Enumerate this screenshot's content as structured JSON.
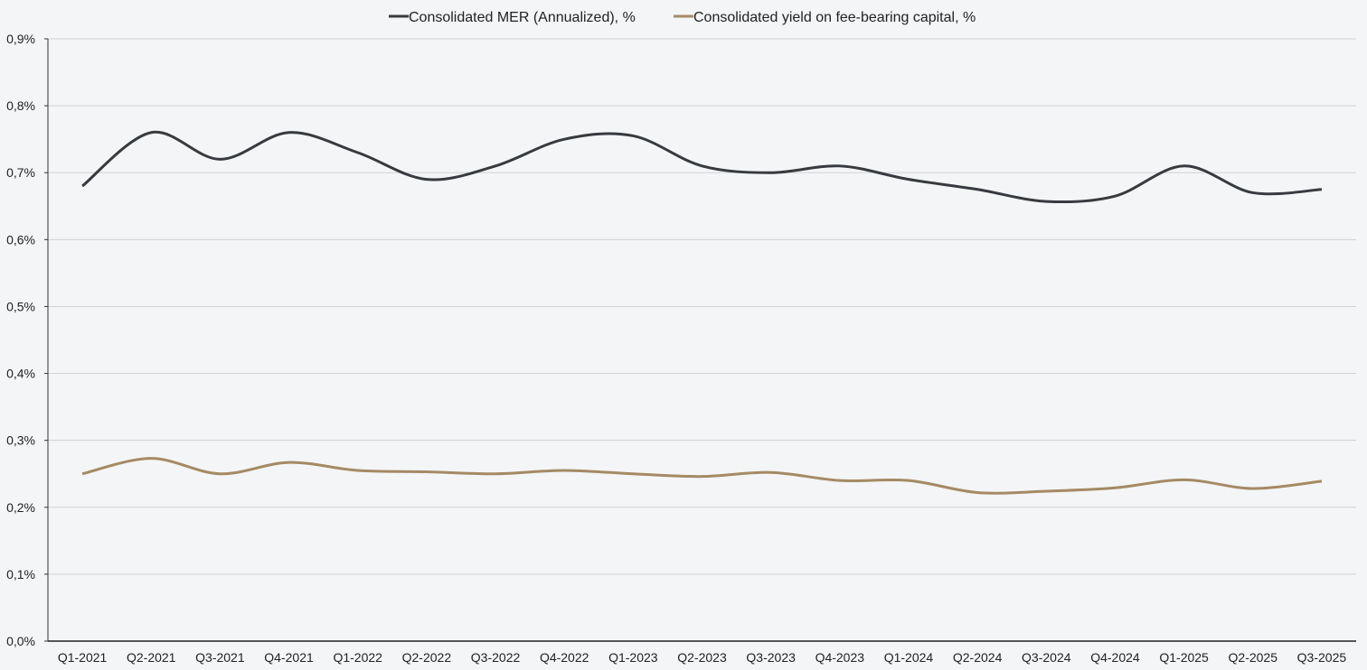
{
  "chart_data": {
    "type": "line",
    "title": "",
    "xlabel": "",
    "ylabel": "",
    "ylim": [
      0,
      0.9
    ],
    "y_ticks": [
      "0,0%",
      "0,1%",
      "0,2%",
      "0,3%",
      "0,4%",
      "0,5%",
      "0,6%",
      "0,7%",
      "0,8%",
      "0,9%"
    ],
    "grid": true,
    "legend_position": "top-center",
    "categories": [
      "Q1-2021",
      "Q2-2021",
      "Q3-2021",
      "Q4-2021",
      "Q1-2022",
      "Q2-2022",
      "Q3-2022",
      "Q4-2022",
      "Q1-2023",
      "Q2-2023",
      "Q3-2023",
      "Q4-2023",
      "Q1-2024",
      "Q2-2024",
      "Q3-2024",
      "Q4-2024",
      "Q1-2025",
      "Q2-2025",
      "Q3-2025"
    ],
    "series": [
      {
        "name": "Consolidated MER (Annualized), %",
        "color": "#373a3e",
        "values": [
          0.68,
          0.76,
          0.72,
          0.76,
          0.73,
          0.69,
          0.71,
          0.75,
          0.755,
          0.71,
          0.7,
          0.71,
          0.69,
          0.675,
          0.657,
          0.665,
          0.71,
          0.67,
          0.675
        ]
      },
      {
        "name": "Consolidated yield on fee-bearing capital, %",
        "color": "#a58a63",
        "values": [
          0.25,
          0.273,
          0.25,
          0.267,
          0.255,
          0.253,
          0.25,
          0.255,
          0.25,
          0.246,
          0.252,
          0.24,
          0.24,
          0.222,
          0.224,
          0.229,
          0.241,
          0.228,
          0.239
        ]
      }
    ]
  }
}
